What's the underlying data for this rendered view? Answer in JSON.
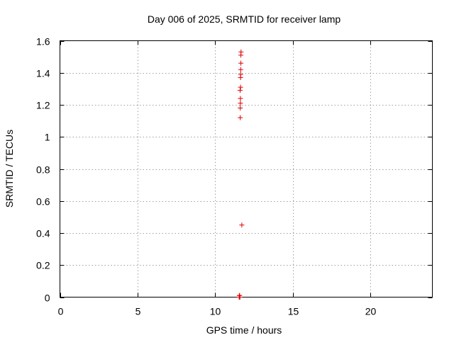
{
  "chart_data": {
    "type": "scatter",
    "title": "Day 006 of 2025, SRMTID for receiver lamp",
    "xlabel": "GPS time / hours",
    "ylabel": "SRMTID / TECUs",
    "xlim": [
      0,
      24
    ],
    "ylim": [
      0,
      1.6
    ],
    "xticks": [
      0,
      5,
      10,
      15,
      20
    ],
    "xtick_labels": [
      "0",
      "5",
      "10",
      "15",
      "20"
    ],
    "yticks": [
      0,
      0.2,
      0.4,
      0.6,
      0.8,
      1.0,
      1.2,
      1.4,
      1.6
    ],
    "ytick_labels": [
      "0",
      "0.2",
      "0.4",
      "0.6",
      "0.8",
      "1",
      "1.2",
      "1.4",
      "1.6"
    ],
    "grid": true,
    "marker": "+",
    "color": "#dd0000",
    "series": [
      {
        "name": "SRMTID",
        "points": [
          {
            "x": 11.55,
            "y": 0.0
          },
          {
            "x": 11.57,
            "y": 0.0
          },
          {
            "x": 11.59,
            "y": 0.0
          },
          {
            "x": 11.56,
            "y": 0.01
          },
          {
            "x": 11.58,
            "y": 0.01
          },
          {
            "x": 11.6,
            "y": 0.0
          },
          {
            "x": 11.62,
            "y": 1.12
          },
          {
            "x": 11.62,
            "y": 1.18
          },
          {
            "x": 11.63,
            "y": 1.21
          },
          {
            "x": 11.63,
            "y": 1.24
          },
          {
            "x": 11.61,
            "y": 1.29
          },
          {
            "x": 11.64,
            "y": 1.31
          },
          {
            "x": 11.64,
            "y": 1.37
          },
          {
            "x": 11.65,
            "y": 1.39
          },
          {
            "x": 11.65,
            "y": 1.42
          },
          {
            "x": 11.66,
            "y": 1.46
          },
          {
            "x": 11.66,
            "y": 1.51
          },
          {
            "x": 11.67,
            "y": 1.53
          },
          {
            "x": 11.72,
            "y": 0.45
          }
        ]
      }
    ]
  }
}
